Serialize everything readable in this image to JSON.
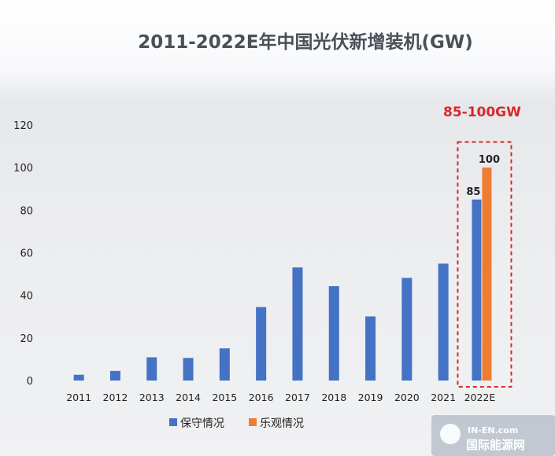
{
  "chart_data": {
    "type": "bar",
    "title": "2011-2022E年中国光伏新增装机(GW)",
    "categories": [
      "2011",
      "2012",
      "2013",
      "2014",
      "2015",
      "2016",
      "2017",
      "2018",
      "2019",
      "2020",
      "2021",
      "2022E"
    ],
    "series": [
      {
        "name": "保守情况",
        "color": "#4472c4",
        "values": [
          2.7,
          4.5,
          10.9,
          10.6,
          15.1,
          34.5,
          53.1,
          44.3,
          30.1,
          48.2,
          54.9,
          85
        ]
      },
      {
        "name": "乐观情况",
        "color": "#ed7d31",
        "values": [
          null,
          null,
          null,
          null,
          null,
          null,
          null,
          null,
          null,
          null,
          null,
          100
        ]
      }
    ],
    "data_labels": [
      {
        "category": "2022E",
        "series": "保守情况",
        "text": "85"
      },
      {
        "category": "2022E",
        "series": "乐观情况",
        "text": "100"
      }
    ],
    "annotation": {
      "text": "85-100GW",
      "color": "#d8282a",
      "target": "2022E"
    },
    "ylim": [
      0,
      120
    ],
    "yticks": [
      0,
      20,
      40,
      60,
      80,
      100,
      120
    ],
    "xlabel": "",
    "ylabel": "",
    "grid": false,
    "legend": "bottom"
  },
  "watermark": {
    "logo_text": "IN-EN.com",
    "brand_text": "国际能源网"
  }
}
